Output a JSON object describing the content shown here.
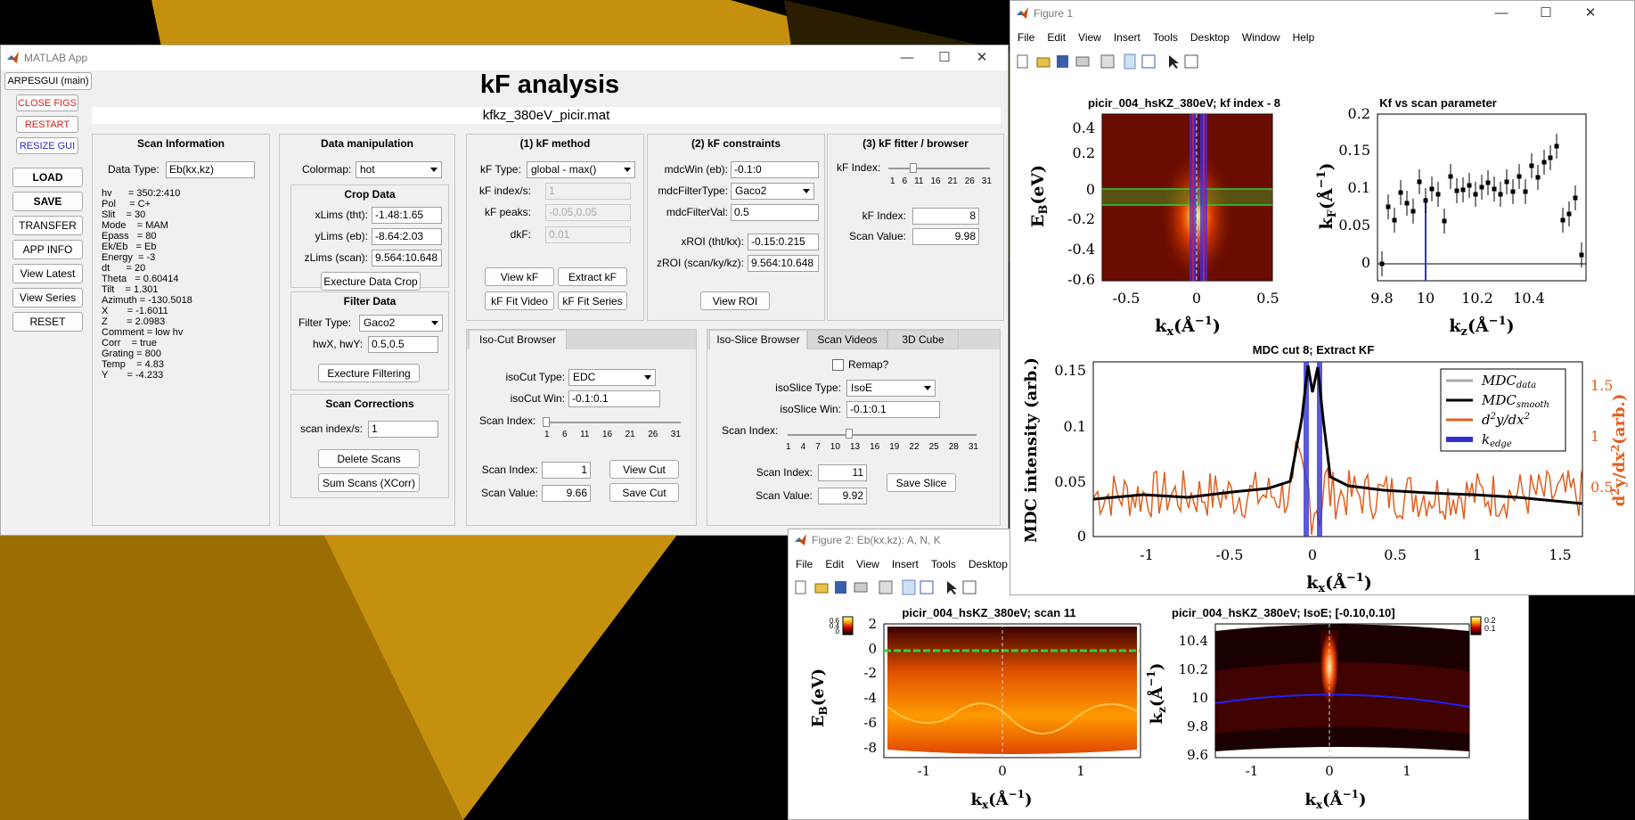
{
  "matlab_app": {
    "title": "MATLAB App",
    "tab_main": "ARPESGUI (main)",
    "header": "kF analysis",
    "filename": "kfkz_380eV_picir.mat",
    "side_buttons": {
      "close_figs": "CLOSE FIGS",
      "restart": "RESTART",
      "resize": "RESIZE GUI",
      "load": "LOAD",
      "save": "SAVE",
      "transfer": "TRANSFER",
      "app_info": "APP INFO",
      "view_latest": "View Latest",
      "view_series": "View Series",
      "reset": "RESET"
    },
    "scan_info": {
      "title": "Scan Information",
      "data_type_label": "Data Type:",
      "data_type": "Eb(kx,kz)",
      "lines": "hv      = 350:2:410\nPol     = C+\nSlit    = 30\nMode    = MAM\nEpass   = 80\nEk/Eb   = Eb\nEnergy  = -3\ndt      = 20\nTheta   = 0.60414\nTilt    = 1.301\nAzimuth = -130.5018\nX       = -1.6011\nZ       = 2.0983\nComment = low hv\nCorr    = true\nGrating = 800\nTemp    = 4.83\nY       = -4.233"
    },
    "data_manip": {
      "title": "Data manipulation",
      "colormap_label": "Colormap:",
      "colormap": "hot",
      "crop_title": "Crop Data",
      "xlims_label": "xLims (tht):",
      "xlims": "-1.48:1.65",
      "ylims_label": "yLims (eb):",
      "ylims": "-8.64:2.03",
      "zlims_label": "zLims (scan):",
      "zlims": "9.564:10.648",
      "crop_btn": "Execture Data Crop",
      "filter_title": "Filter Data",
      "filter_type_label": "Filter Type:",
      "filter_type": "Gaco2",
      "hw_label": "hwX, hwY:",
      "hw": "0.5,0.5",
      "filter_btn": "Execture Filtering",
      "corr_title": "Scan Corrections",
      "scan_idx_label": "scan index/s:",
      "scan_idx": "1",
      "delete_btn": "Delete Scans",
      "sum_btn": "Sum Scans (XCorr)"
    },
    "kf_method": {
      "title": "(1) kF method",
      "kf_type_label": "kF Type:",
      "kf_type": "global - max()",
      "kf_index_label": "kF index/s:",
      "kf_index": "1",
      "kf_peaks_label": "kF peaks:",
      "kf_peaks": "-0.05,0.05",
      "dkf_label": "dkF:",
      "dkf": "0.01",
      "view_kf": "View kF",
      "extract_kf": "Extract kF",
      "fit_video": "kF Fit Video",
      "fit_series": "kF Fit Series"
    },
    "kf_constraints": {
      "title": "(2) kF constraints",
      "mdcwin_label": "mdcWin (eb):",
      "mdcwin": "-0.1:0",
      "mdcfilter_label": "mdcFilterType:",
      "mdcfilter": "Gaco2",
      "mdcfilterval_label": "mdcFilterVal:",
      "mdcfilterval": "0.5",
      "xroi_label": "xROI (tht/kx):",
      "xroi": "-0.15:0.215",
      "zroi_label": "zROI (scan/ky/kz):",
      "zroi": "9.564:10.648",
      "view_roi": "View ROI"
    },
    "kf_fitter": {
      "title": "(3) kF fitter / browser",
      "kf_index_label": "kF Index:",
      "ticks": [
        "1",
        "6",
        "11",
        "16",
        "21",
        "26",
        "31"
      ],
      "kf_index2_label": "kF Index:",
      "kf_index2": "8",
      "scan_value_label": "Scan Value:",
      "scan_value": "9.98"
    },
    "isocut": {
      "tab": "Iso-Cut Browser",
      "type_label": "isoCut Type:",
      "type": "EDC",
      "win_label": "isoCut Win:",
      "win": "-0.1:0.1",
      "scan_index_label": "Scan Index:",
      "ticks": [
        "1",
        "6",
        "11",
        "16",
        "21",
        "26",
        "31"
      ],
      "scan_index2_label": "Scan Index:",
      "scan_index": "1",
      "scan_value_label": "Scan Value:",
      "scan_value": "9.66",
      "view_cut": "View Cut",
      "save_cut": "Save Cut"
    },
    "isoslice": {
      "tabs": [
        "Iso-Slice Browser",
        "Scan Videos",
        "3D Cube"
      ],
      "remap": "Remap?",
      "type_label": "isoSlice Type:",
      "type": "IsoE",
      "win_label": "isoSlice Win:",
      "win": "-0.1:0.1",
      "scan_index_label": "Scan Index:",
      "ticks": [
        "1",
        "4",
        "7",
        "10",
        "13",
        "16",
        "19",
        "22",
        "25",
        "28",
        "31"
      ],
      "scan_index2_label": "Scan Index:",
      "scan_index": "11",
      "scan_value_label": "Scan Value:",
      "scan_value": "9.92",
      "save_slice": "Save Slice"
    }
  },
  "figure1": {
    "title": "Figure 1",
    "menu": [
      "File",
      "Edit",
      "View",
      "Insert",
      "Tools",
      "Desktop",
      "Window",
      "Help"
    ],
    "ax1_title": "picir_004_hsKZ_380eV; kf index - 8",
    "ax1_yticks": [
      "0.4",
      "0.2",
      "0",
      "-0.2",
      "-0.4",
      "-0.6"
    ],
    "ax1_xticks": [
      "-0.5",
      "0",
      "0.5"
    ],
    "ax2_title": "Kf vs scan parameter",
    "ax2_yticks": [
      "0.2",
      "0.15",
      "0.1",
      "0.05",
      "0"
    ],
    "ax2_xticks": [
      "9.8",
      "10",
      "10.2",
      "10.4"
    ],
    "ax3_title": "MDC cut 8; Extract KF",
    "ax3_yticks": [
      "0.15",
      "0.1",
      "0.05",
      "0"
    ],
    "ax3_y2ticks": [
      "1.5",
      "1",
      "0.5"
    ],
    "ax3_xticks": [
      "-1",
      "-0.5",
      "0",
      "0.5",
      "1",
      "1.5"
    ],
    "ax3_ylabel": "MDC intensity (arb.)"
  },
  "figure2": {
    "title": "Figure 2: Eb(kx,kz): A, N, K",
    "menu": [
      "File",
      "Edit",
      "View",
      "Insert",
      "Tools",
      "Desktop"
    ],
    "ax1_title": "picir_004_hsKZ_380eV; scan 11",
    "ax1_yticks": [
      "2",
      "0",
      "-2",
      "-4",
      "-6",
      "-8"
    ],
    "ax1_xticks": [
      "-1",
      "0",
      "1"
    ],
    "ax1_cbar": [
      "0.6",
      "0.4",
      "0.2",
      "0"
    ],
    "ax2_title": "picir_004_hsKZ_380eV; IsoE; [-0.10,0.10]",
    "ax2_yticks": [
      "10.4",
      "10.2",
      "10",
      "9.8",
      "9.6"
    ],
    "ax2_xticks": [
      "-1",
      "0",
      "1"
    ],
    "ax2_cbar": [
      "0.2",
      "0.1"
    ]
  }
}
